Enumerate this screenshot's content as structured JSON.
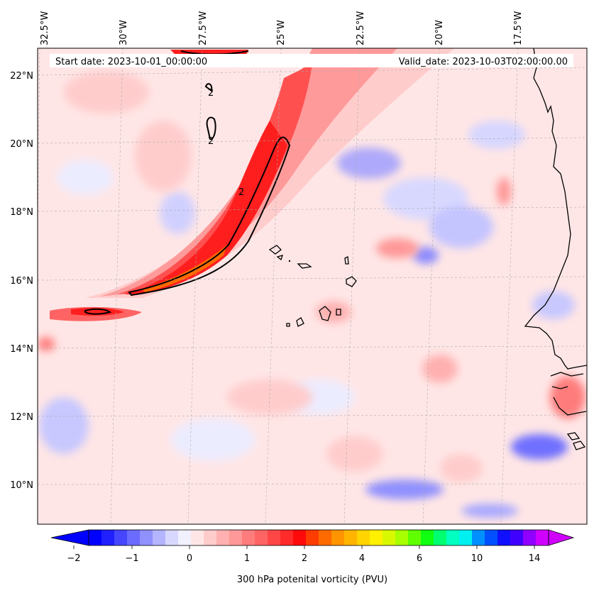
{
  "map": {
    "start_date": "Start date: 2023-10-01_00:00:00",
    "valid_date": "Valid_date: 2023-10-03T02:00:00.00",
    "lon_labels": [
      "32.5°W",
      "30°W",
      "27.5°W",
      "25°W",
      "22.5°W",
      "20°W",
      "17.5°W"
    ],
    "lat_labels": [
      "22°N",
      "20°N",
      "18°N",
      "16°N",
      "14°N",
      "12°N",
      "10°N"
    ],
    "contour_label": "2"
  },
  "colorbar": {
    "title": "300 hPa potenital vorticity (PVU)",
    "tick_labels": [
      "−2",
      "−1",
      "0",
      "1",
      "2",
      "4",
      "6",
      "10",
      "14"
    ],
    "colors": [
      "#0000ff",
      "#2020ff",
      "#4646ff",
      "#6b6bff",
      "#9090ff",
      "#b4b4ff",
      "#d8d8ff",
      "#f0f0ff",
      "#ffe6e6",
      "#ffcccc",
      "#ffb0b0",
      "#ff9898",
      "#ff7c7c",
      "#ff6464",
      "#ff4646",
      "#ff2a2a",
      "#ff0a0a",
      "#ff3c00",
      "#ff6a00",
      "#ff9400",
      "#ffb400",
      "#ffd400",
      "#fff000",
      "#d8f800",
      "#a8ff00",
      "#60ff00",
      "#10ff10",
      "#00ff70",
      "#00ffc0",
      "#00f0f0",
      "#0090ff",
      "#0050ff",
      "#1010ff",
      "#4000ff",
      "#9000ff",
      "#d000ff"
    ]
  }
}
